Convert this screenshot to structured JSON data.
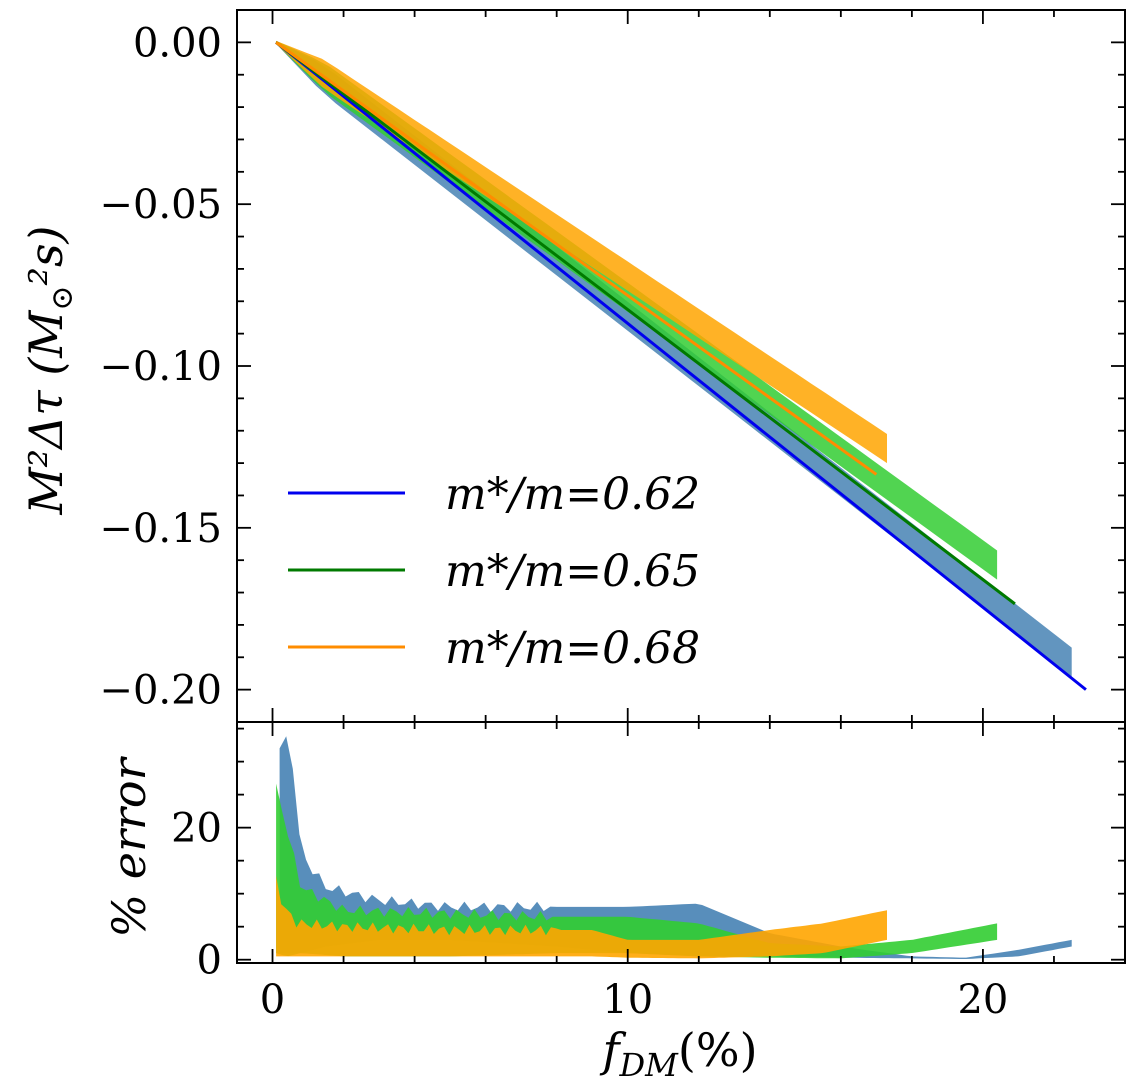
{
  "chart_data": [
    {
      "type": "line",
      "panel": "top",
      "title": "",
      "xlabel": "",
      "ylabel": "M²Δτ (M⊙²s)",
      "xlim": [
        -1.0,
        24.0
      ],
      "ylim": [
        -0.21,
        0.01
      ],
      "xticks": [
        0,
        10,
        20
      ],
      "yticks": [
        0.0,
        -0.05,
        -0.1,
        -0.15,
        -0.2
      ],
      "ytick_labels": [
        "0.00",
        "−0.05",
        "−0.10",
        "−0.15",
        "−0.20"
      ],
      "legend_position": "lower-left",
      "series": [
        {
          "name": "m*/m=0.62",
          "color": "#0000ee",
          "x": [
            0.1,
            22.9
          ],
          "y": [
            0.0,
            -0.2
          ]
        },
        {
          "name": "m*/m=0.65",
          "color": "#007a00",
          "x": [
            0.1,
            20.9
          ],
          "y": [
            0.0,
            -0.1735
          ]
        },
        {
          "name": "m*/m=0.68",
          "color": "#ff8c00",
          "x": [
            0.1,
            17.0
          ],
          "y": [
            0.0,
            -0.1335
          ]
        }
      ],
      "scatter_bands": [
        {
          "color": "#4682b4",
          "x": [
            0.1,
            22.5
          ],
          "y_center": [
            0.0,
            -0.1915
          ],
          "y_halfwidth": 0.0045
        },
        {
          "color": "#32cd32",
          "x": [
            0.1,
            20.4
          ],
          "y_center": [
            0.0,
            -0.1615
          ],
          "y_halfwidth": 0.0045
        },
        {
          "color": "#ffa500",
          "x": [
            0.1,
            17.3
          ],
          "y_center": [
            0.0,
            -0.1255
          ],
          "y_halfwidth": 0.0045
        }
      ]
    },
    {
      "type": "scatter",
      "panel": "bottom",
      "xlabel": "f_DM(%)",
      "ylabel": "% error",
      "xlim": [
        -1.0,
        24.0
      ],
      "ylim": [
        -0.5,
        36.0
      ],
      "xticks": [
        0,
        10,
        20
      ],
      "xtick_labels": [
        "0",
        "10",
        "20"
      ],
      "yticks": [
        0,
        20
      ],
      "ytick_labels": [
        "0",
        "20"
      ],
      "series": [
        {
          "name": "m*/m=0.62 error",
          "color": "#4682b4",
          "x": [
            0.2,
            0.5,
            0.8,
            1.5,
            3,
            5,
            8,
            10,
            12,
            14,
            16,
            18,
            19.5,
            21,
            22.5
          ],
          "upper": [
            32,
            34,
            16,
            11,
            9,
            8,
            8,
            8,
            8.5,
            4,
            2,
            0.5,
            0.3,
            1.5,
            3
          ],
          "lower": [
            1,
            1,
            1,
            2,
            3,
            3,
            2,
            1,
            0.5,
            0.5,
            0.3,
            0.2,
            0.1,
            0.5,
            2
          ]
        },
        {
          "name": "m*/m=0.65 error",
          "color": "#32cd32",
          "x": [
            0.1,
            0.4,
            0.8,
            2,
            5,
            8,
            10,
            12,
            14,
            16,
            18,
            20.4
          ],
          "upper": [
            26,
            20,
            11,
            7.5,
            7,
            6.5,
            6.5,
            5.5,
            2.5,
            2,
            3,
            5.5
          ],
          "lower": [
            1,
            0.5,
            1,
            0.5,
            0.5,
            1,
            1,
            0.5,
            0.3,
            0.2,
            1,
            3
          ]
        },
        {
          "name": "m*/m=0.68 error",
          "color": "#ffa500",
          "x": [
            0.1,
            0.3,
            0.7,
            2,
            5,
            9,
            10,
            12,
            14,
            15.5,
            17.3
          ],
          "upper": [
            12,
            8,
            5.5,
            5,
            4.5,
            4.5,
            3,
            3,
            4.5,
            5.5,
            7.5
          ],
          "lower": [
            0.5,
            0.5,
            0.5,
            0.5,
            0.5,
            0.5,
            0.3,
            0.2,
            0.5,
            1,
            3
          ]
        }
      ]
    }
  ],
  "labels": {
    "top_ylabel_main": "M²Δτ (M",
    "top_ylabel_sub": "⊙",
    "top_ylabel_tail": "²s)",
    "bottom_ylabel": "% error",
    "xlabel_main": "f",
    "xlabel_sub": "DM",
    "xlabel_tail": "(%)",
    "legend": [
      "m*/m=0.62",
      "m*/m=0.65",
      "m*/m=0.68"
    ]
  }
}
